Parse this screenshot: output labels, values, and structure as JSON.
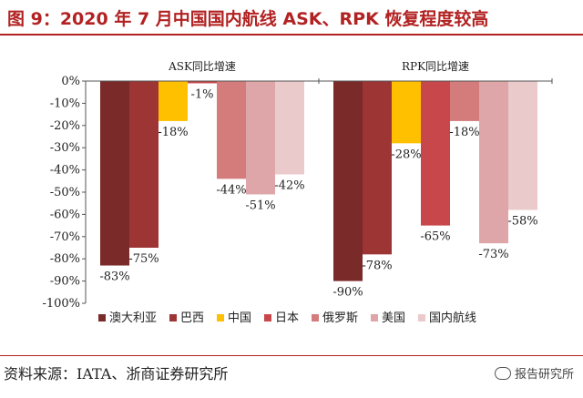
{
  "header": {
    "title": "图 9：2020 年 7 月中国国内航线 ASK、RPK 恢复程度较高"
  },
  "footer": {
    "source": "资料来源：IATA、浙商证券研究所",
    "watermark": "报告研究所",
    "watermark_icon": "wechat-icon"
  },
  "chart_data": {
    "type": "bar",
    "y_ticks": [
      "0%",
      "-10%",
      "-20%",
      "-30%",
      "-40%",
      "-50%",
      "-60%",
      "-70%",
      "-80%",
      "-90%",
      "-100%"
    ],
    "ylim": [
      -100,
      0
    ],
    "legend_position": "bottom",
    "series": [
      {
        "name": "澳大利亚",
        "color": "#7b2a2a"
      },
      {
        "name": "巴西",
        "color": "#9e3535"
      },
      {
        "name": "中国",
        "color": "#ffc000"
      },
      {
        "name": "日本",
        "color": "#c8474b"
      },
      {
        "name": "俄罗斯",
        "color": "#d47c7c"
      },
      {
        "name": "美国",
        "color": "#dea6a8"
      },
      {
        "name": "国内航线",
        "color": "#ebcacc"
      }
    ],
    "groups": [
      {
        "label": "ASK同比增速",
        "values": [
          -83,
          -75,
          -18,
          -1,
          -44,
          -51,
          -42
        ],
        "labels": [
          "-83%",
          "-75%",
          "-18%",
          "-1%",
          "-44%",
          "-51%",
          "-42%"
        ]
      },
      {
        "label": "RPK同比增速",
        "values": [
          -90,
          -78,
          -28,
          -65,
          -18,
          -73,
          -58
        ],
        "labels": [
          "-90%",
          "-78%",
          "-28%",
          "-65%",
          "-18%",
          "-73%",
          "-58%"
        ]
      }
    ]
  }
}
